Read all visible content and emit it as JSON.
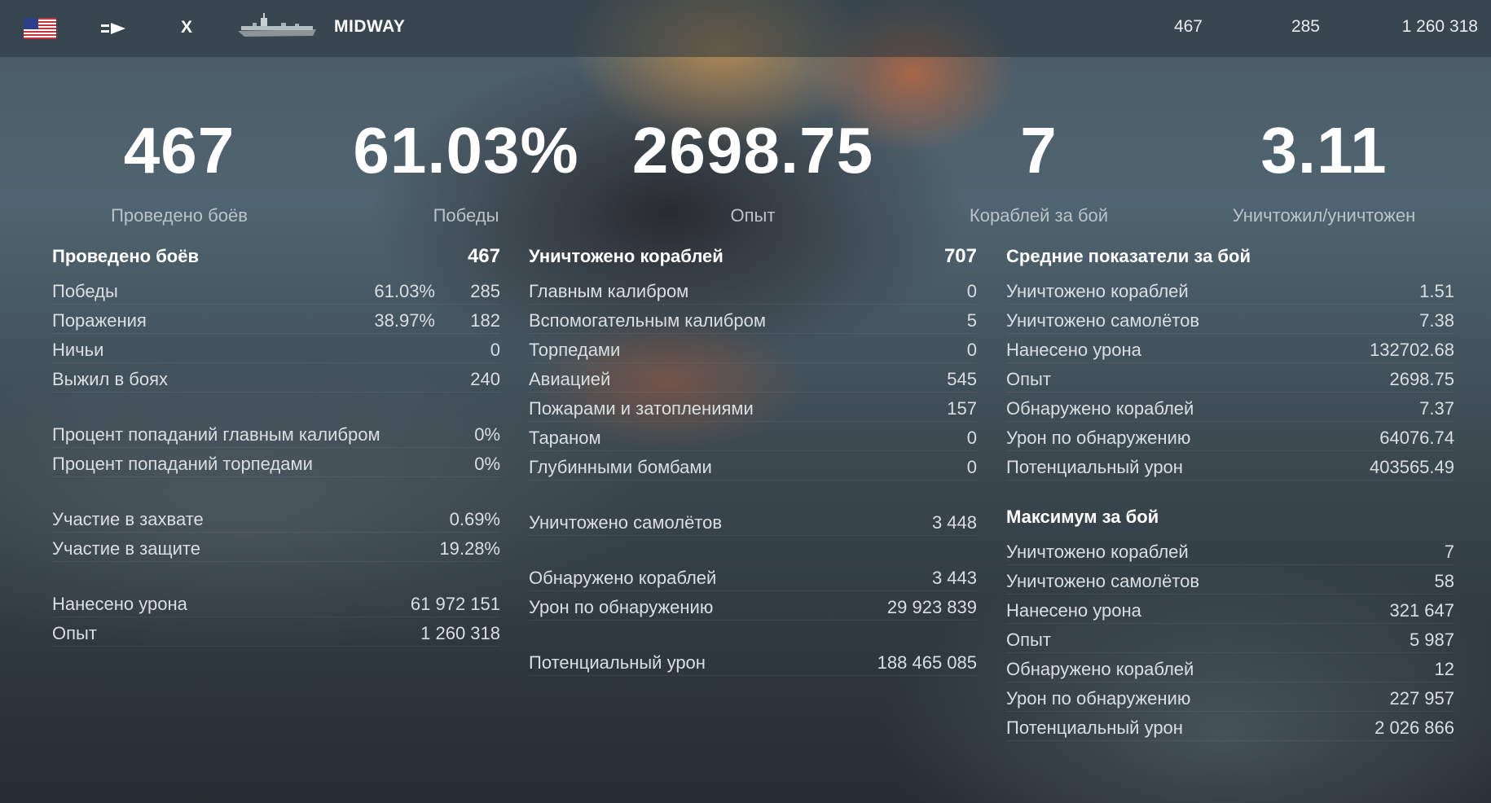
{
  "header": {
    "nation_icon": "usa-flag-icon",
    "class_icon": "aircraft-carrier-icon",
    "tier": "X",
    "ship_name": "MIDWAY",
    "stats": [
      "467",
      "285",
      "1 260 318"
    ]
  },
  "summary": [
    {
      "value": "467",
      "label": "Проведено боёв"
    },
    {
      "value": "61.03%",
      "label": "Победы"
    },
    {
      "value": "2698.75",
      "label": "Опыт"
    },
    {
      "value": "7",
      "label": "Кораблей за бой"
    },
    {
      "value": "3.11",
      "label": "Уничтожил/уничтожен"
    }
  ],
  "col1": {
    "title": "Проведено боёв",
    "title_value": "467",
    "wins": {
      "label": "Победы",
      "pct": "61.03%",
      "val": "285"
    },
    "losses": {
      "label": "Поражения",
      "pct": "38.97%",
      "val": "182"
    },
    "draws": {
      "label": "Ничьи",
      "val": "0"
    },
    "survived": {
      "label": "Выжил в боях",
      "val": "240"
    },
    "main_hit": {
      "label": "Процент попаданий главным калибром",
      "val": "0%"
    },
    "torp_hit": {
      "label": "Процент попаданий торпедами",
      "val": "0%"
    },
    "capture": {
      "label": "Участие в захвате",
      "val": "0.69%"
    },
    "defense": {
      "label": "Участие в защите",
      "val": "19.28%"
    },
    "damage": {
      "label": "Нанесено урона",
      "val": "61 972 151"
    },
    "xp": {
      "label": "Опыт",
      "val": "1 260 318"
    }
  },
  "col2": {
    "title": "Уничтожено кораблей",
    "title_value": "707",
    "items": [
      {
        "label": "Главным калибром",
        "val": "0"
      },
      {
        "label": "Вспомогательным калибром",
        "val": "5"
      },
      {
        "label": "Торпедами",
        "val": "0"
      },
      {
        "label": "Авиацией",
        "val": "545"
      },
      {
        "label": "Пожарами и затоплениями",
        "val": "157"
      },
      {
        "label": "Тараном",
        "val": "0"
      },
      {
        "label": "Глубинными бомбами",
        "val": "0"
      }
    ],
    "planes": {
      "label": "Уничтожено самолётов",
      "val": "3 448"
    },
    "spotted": {
      "label": "Обнаружено кораблей",
      "val": "3 443"
    },
    "spot_dmg": {
      "label": "Урон по обнаружению",
      "val": "29 923 839"
    },
    "potential": {
      "label": "Потенциальный урон",
      "val": "188 465 085"
    }
  },
  "col3": {
    "avg_title": "Средние показатели за бой",
    "avg": [
      {
        "label": "Уничтожено кораблей",
        "val": "1.51"
      },
      {
        "label": "Уничтожено самолётов",
        "val": "7.38"
      },
      {
        "label": "Нанесено урона",
        "val": "132702.68"
      },
      {
        "label": "Опыт",
        "val": "2698.75"
      },
      {
        "label": "Обнаружено кораблей",
        "val": "7.37"
      },
      {
        "label": "Урон по обнаружению",
        "val": "64076.74"
      },
      {
        "label": "Потенциальный урон",
        "val": "403565.49"
      }
    ],
    "max_title": "Максимум за бой",
    "max": [
      {
        "label": "Уничтожено кораблей",
        "val": "7"
      },
      {
        "label": "Уничтожено самолётов",
        "val": "58"
      },
      {
        "label": "Нанесено урона",
        "val": "321 647"
      },
      {
        "label": "Опыт",
        "val": "5 987"
      },
      {
        "label": "Обнаружено кораблей",
        "val": "12"
      },
      {
        "label": "Урон по обнаружению",
        "val": "227 957"
      },
      {
        "label": "Потенциальный урон",
        "val": "2 026 866"
      }
    ]
  }
}
